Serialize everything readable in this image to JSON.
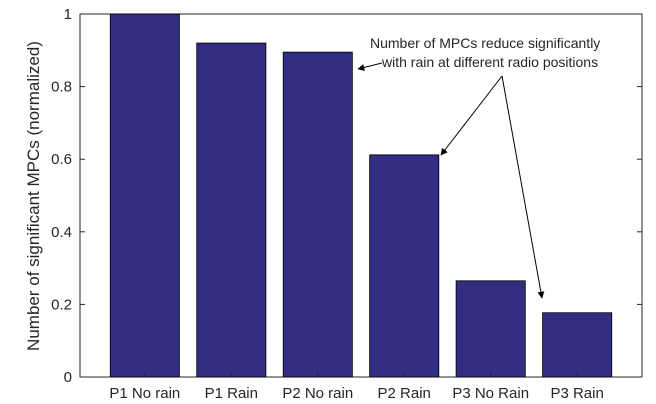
{
  "chart_data": {
    "type": "bar",
    "categories": [
      "P1 No rain",
      "P1 Rain",
      "P2 No rain",
      "P2 Rain",
      "P3 No Rain",
      "P3 Rain"
    ],
    "values": [
      1.0,
      0.92,
      0.895,
      0.612,
      0.265,
      0.177
    ],
    "title": "",
    "xlabel": "",
    "ylabel": "Number of significant MPCs (normalized)",
    "ylim": [
      0,
      1
    ],
    "yticks": [
      "0",
      "0.2",
      "0.4",
      "0.6",
      "0.8",
      "1"
    ],
    "bar_color": "#312d80",
    "grid": false,
    "annotation": {
      "lines": [
        "Number of MPCs reduce significantly",
        "with rain at different radio positions"
      ],
      "points_to": [
        "P2 No rain",
        "P2 Rain",
        "P3 Rain"
      ]
    }
  }
}
